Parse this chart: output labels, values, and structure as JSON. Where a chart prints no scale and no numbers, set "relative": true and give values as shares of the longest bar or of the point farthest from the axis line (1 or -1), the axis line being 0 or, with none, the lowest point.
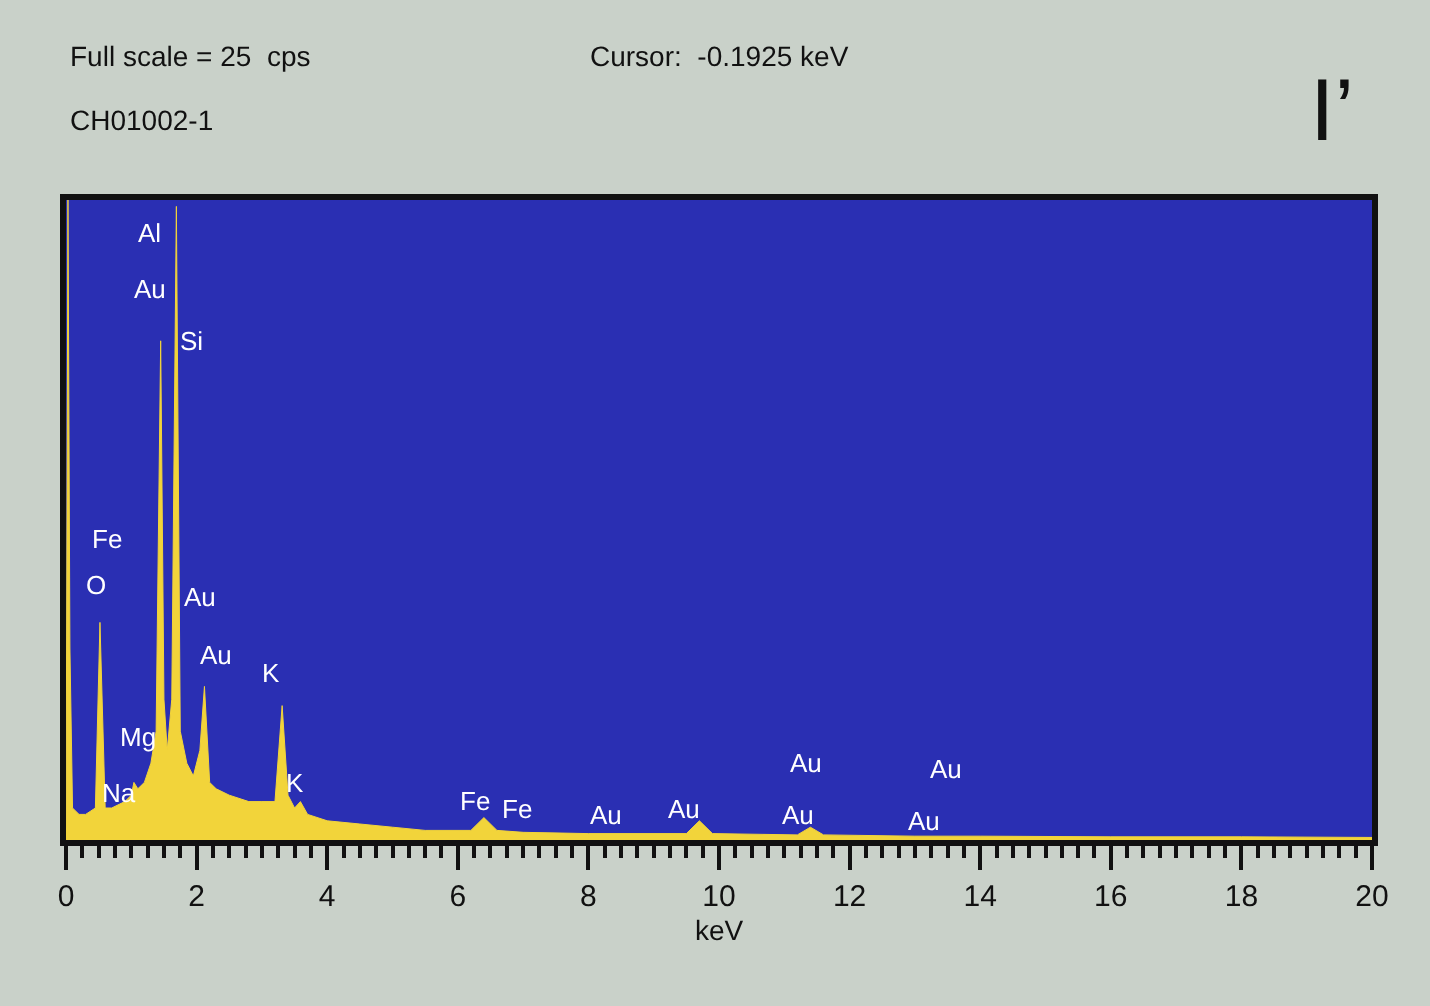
{
  "chart_data": {
    "type": "area",
    "relative": true,
    "xlabel": "keV",
    "xlim": [
      0,
      20
    ],
    "xticks": [
      0,
      2,
      4,
      6,
      8,
      10,
      12,
      14,
      16,
      18,
      20
    ],
    "grid": false,
    "x": [
      0,
      0.03,
      0.06,
      0.1,
      0.2,
      0.3,
      0.45,
      0.52,
      0.6,
      0.7,
      0.9,
      1.0,
      1.04,
      1.1,
      1.2,
      1.3,
      1.38,
      1.45,
      1.5,
      1.55,
      1.62,
      1.69,
      1.75,
      1.85,
      1.95,
      2.05,
      2.12,
      2.2,
      2.3,
      2.5,
      2.8,
      3.0,
      3.2,
      3.31,
      3.4,
      3.5,
      3.59,
      3.7,
      4.0,
      4.5,
      5,
      5.5,
      6.2,
      6.4,
      6.6,
      7.0,
      8,
      9.5,
      9.7,
      9.9,
      11.2,
      11.4,
      11.6,
      13,
      14,
      16,
      18,
      20
    ],
    "series": [
      {
        "color": "#f2d43a",
        "values": [
          0,
          1,
          0.3,
          0.05,
          0.04,
          0.04,
          0.05,
          0.34,
          0.05,
          0.05,
          0.06,
          0.07,
          0.09,
          0.08,
          0.09,
          0.12,
          0.17,
          0.78,
          0.22,
          0.14,
          0.22,
          0.99,
          0.17,
          0.12,
          0.1,
          0.14,
          0.24,
          0.09,
          0.08,
          0.07,
          0.06,
          0.06,
          0.06,
          0.21,
          0.07,
          0.05,
          0.06,
          0.04,
          0.03,
          0.025,
          0.02,
          0.015,
          0.015,
          0.035,
          0.015,
          0.012,
          0.01,
          0.01,
          0.03,
          0.01,
          0.008,
          0.02,
          0.008,
          0.006,
          0.006,
          0.005,
          0.005,
          0.004
        ]
      }
    ],
    "annotations": [
      "Full scale = 25  cps",
      "Cursor:  -0.1925 keV",
      "CH01002-1",
      "I’",
      "Al",
      "Au",
      "Si",
      "Fe",
      "O",
      "Au",
      "Au",
      "K",
      "Mg",
      "Na",
      "K",
      "Fe",
      "Fe",
      "Au",
      "Au",
      "Au",
      "Au",
      "Au",
      "Au"
    ]
  }
}
